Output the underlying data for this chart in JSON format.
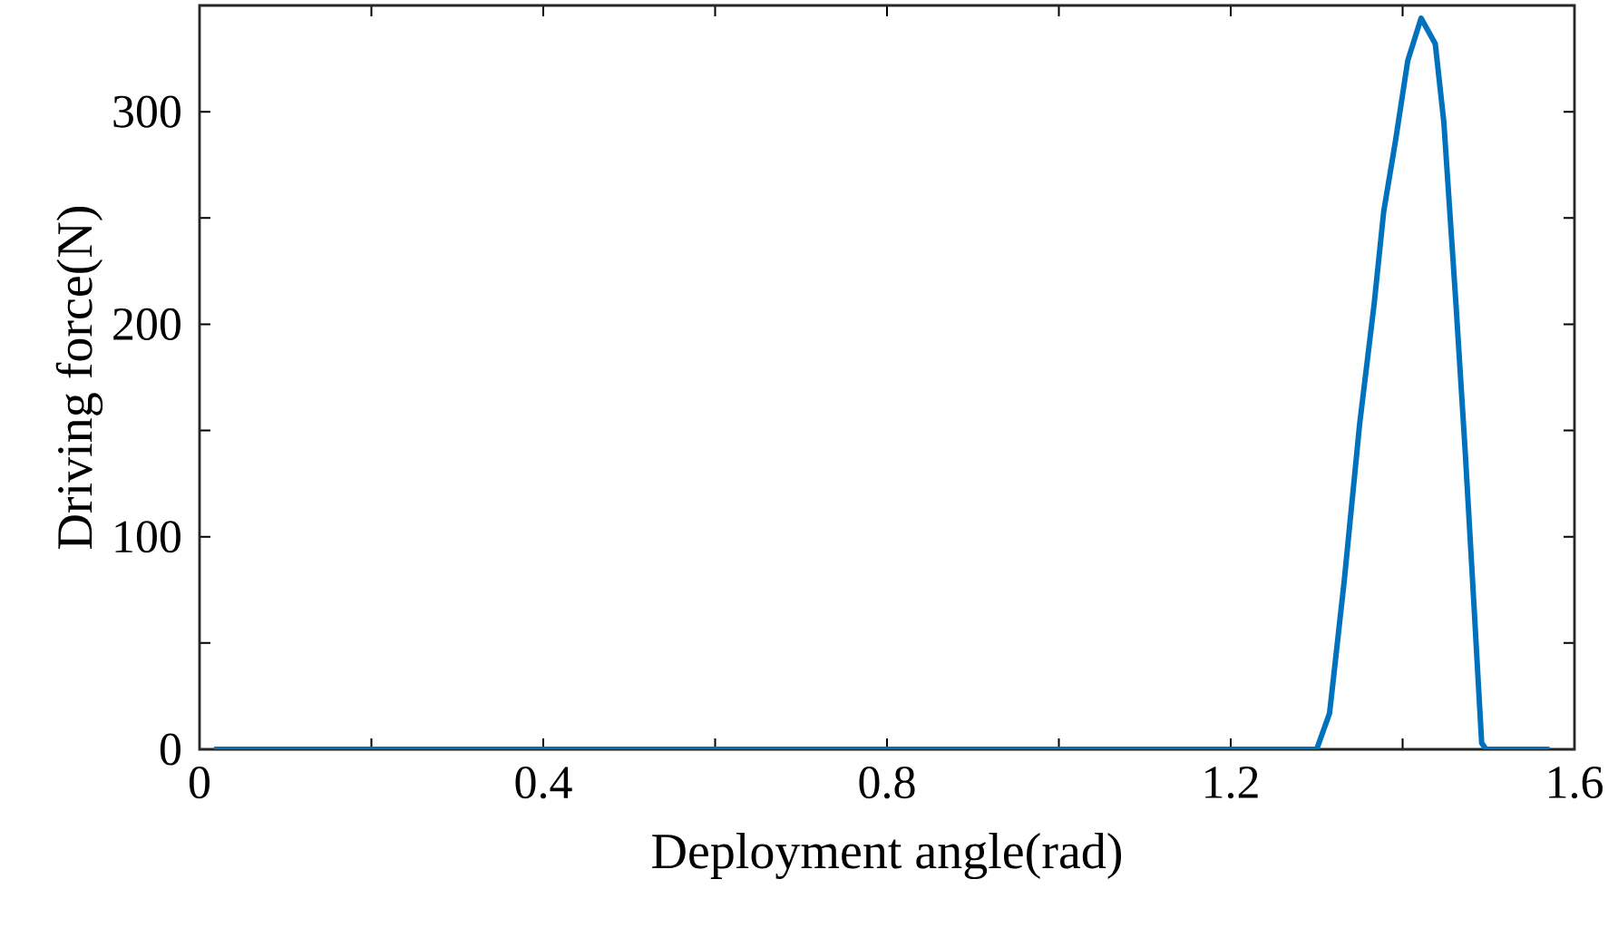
{
  "chart_data": {
    "type": "line",
    "xlabel": "Deployment angle(rad)",
    "ylabel": "Driving force(N)",
    "xlim": [
      0,
      1.6
    ],
    "ylim": [
      0,
      350
    ],
    "xticks": [
      0,
      {
        "value": 0.2,
        "label": null
      },
      0.4,
      {
        "value": 0.6,
        "label": null
      },
      0.8,
      {
        "value": 1.0,
        "label": null
      },
      1.2,
      {
        "value": 1.4,
        "label": null
      },
      1.6
    ],
    "yticks": [
      0,
      {
        "value": 50,
        "label": null
      },
      100,
      {
        "value": 150,
        "label": null
      },
      200,
      {
        "value": 250,
        "label": null
      },
      300
    ],
    "marker": "none",
    "line_style": "solid",
    "series": [
      {
        "color": "#0072bd",
        "x": [
          0.017,
          1.3,
          1.315,
          1.332,
          1.35,
          1.367,
          1.378,
          1.392,
          1.406,
          1.4215,
          1.438,
          1.448,
          1.462,
          1.473,
          1.483,
          1.492,
          1.497,
          1.571
        ],
        "values": [
          0,
          0,
          17,
          79,
          153,
          210,
          253,
          287,
          324,
          344,
          332,
          295,
          210,
          139,
          68,
          3,
          0,
          0
        ]
      }
    ]
  }
}
